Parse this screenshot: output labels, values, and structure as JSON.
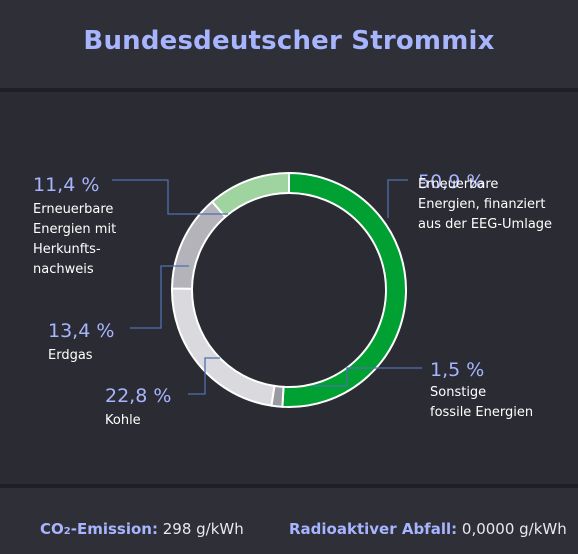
{
  "header": {
    "title": "Bundesdeutscher Strommix"
  },
  "chart_data": {
    "type": "pie",
    "unit": "%",
    "slices": [
      {
        "name": "50,9 %",
        "value": 50.9,
        "label": [
          "Erneuerbare",
          "Energien, finanziert",
          "aus der EEG-Umlage"
        ],
        "color": "#00a032"
      },
      {
        "name": "1,5 %",
        "value": 1.5,
        "label": [
          "Sonstige",
          "fossile Energien"
        ],
        "color": "#9a9aa2"
      },
      {
        "name": "22,8 %",
        "value": 22.8,
        "label": [
          "Kohle"
        ],
        "color": "#d9d9de"
      },
      {
        "name": "13,4 %",
        "value": 13.4,
        "label": [
          "Erdgas"
        ],
        "color": "#b3b3b9"
      },
      {
        "name": "11,4 %",
        "value": 11.4,
        "label": [
          "Erneuerbare",
          "Energien mit",
          "Herkunfts-",
          "nachweis"
        ],
        "color": "#9fd3a0"
      }
    ]
  },
  "footer": {
    "co2_label": "CO",
    "co2_sub": "2",
    "co2_label_suffix": "-Emission:",
    "co2_value": "298 g/kWh",
    "waste_label": "Radioaktiver Abfall:",
    "waste_value": "0,0000 g/kWh"
  },
  "colors": {
    "accent": "#a7b5ff",
    "leader_line": "#4f6fb0"
  }
}
